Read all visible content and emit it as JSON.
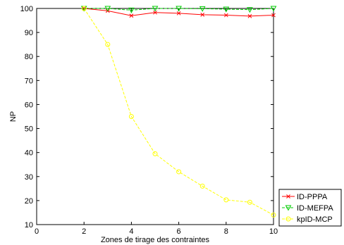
{
  "chart_data": {
    "type": "line",
    "xlabel": "Zones de tirage des contraintes",
    "ylabel": "NP",
    "xlim": [
      0,
      10
    ],
    "ylim": [
      10,
      100
    ],
    "xticks": [
      0,
      2,
      4,
      6,
      8,
      10
    ],
    "yticks": [
      10,
      20,
      30,
      40,
      50,
      60,
      70,
      80,
      90,
      100
    ],
    "grid": false,
    "legend_position": "bottom-right",
    "series": [
      {
        "name": "ID-PPPA",
        "color": "#ff0000",
        "line_style": "solid",
        "marker": "x",
        "x": [
          2,
          3,
          4,
          5,
          6,
          7,
          8,
          9,
          10
        ],
        "y": [
          100,
          99,
          97,
          98.3,
          98,
          97.4,
          97.2,
          96.8,
          97.2
        ]
      },
      {
        "name": "ID-MEFPA",
        "color": "#00cc00",
        "line_style": "dashed",
        "marker": "triangle-down",
        "x": [
          2,
          3,
          4,
          5,
          6,
          7,
          8,
          9,
          10
        ],
        "y": [
          100,
          100,
          99.3,
          100,
          100,
          99.9,
          99.7,
          99.5,
          100
        ]
      },
      {
        "name": "kpID-MCP",
        "color": "#ffff00",
        "line_style": "dashed",
        "marker": "circle",
        "x": [
          2,
          3,
          4,
          5,
          6,
          7,
          8,
          9,
          10
        ],
        "y": [
          100,
          85,
          55,
          39.5,
          32,
          26,
          20.3,
          19.3,
          14
        ]
      }
    ]
  }
}
